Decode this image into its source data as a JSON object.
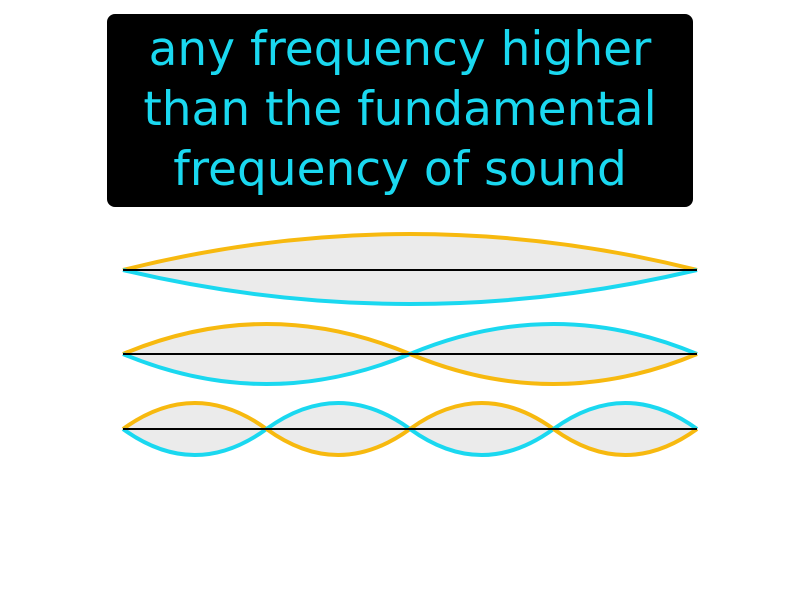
{
  "definition": {
    "lines": [
      "any frequency higher",
      "than the fundamental",
      "frequency of sound"
    ],
    "text_color": "#1ad8f0",
    "background_color": "#000000"
  },
  "illustration": {
    "type": "standing-wave-harmonics",
    "harmonics": [
      {
        "loops": 1
      },
      {
        "loops": 2
      },
      {
        "loops": 4
      }
    ],
    "colors": {
      "upper_curve": "#f7b90f",
      "lower_curve": "#1ad8f0",
      "fill": "#ebebeb",
      "string": "#000000"
    }
  }
}
